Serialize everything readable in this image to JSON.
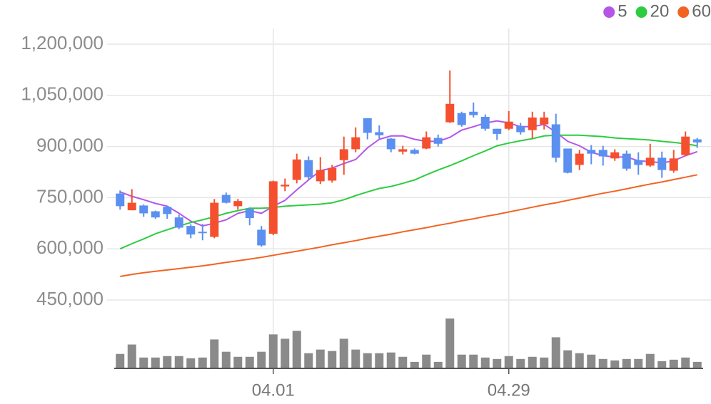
{
  "chart_data": {
    "type": "candlestick",
    "categories": [
      null,
      null,
      null,
      null,
      null,
      null,
      null,
      null,
      null,
      null,
      null,
      null,
      null,
      "04.01",
      null,
      null,
      null,
      null,
      null,
      null,
      null,
      null,
      null,
      null,
      null,
      null,
      null,
      null,
      null,
      null,
      null,
      null,
      null,
      "04.29",
      null,
      null,
      null,
      null,
      null,
      null,
      null,
      null,
      null,
      null,
      null,
      null,
      null,
      null,
      null,
      null
    ],
    "open": [
      762000,
      713000,
      727000,
      710000,
      723000,
      692000,
      667000,
      650000,
      635000,
      758000,
      725000,
      717000,
      656000,
      644000,
      783000,
      802000,
      860000,
      798000,
      800000,
      860000,
      892000,
      983000,
      942000,
      923000,
      885000,
      890000,
      894000,
      925000,
      971000,
      998000,
      1002000,
      987000,
      952000,
      952000,
      960000,
      948000,
      965000,
      965000,
      894000,
      846000,
      890000,
      890000,
      865000,
      879000,
      860000,
      844000,
      867000,
      829000,
      875000,
      921000
    ],
    "high": [
      771000,
      775000,
      730000,
      712000,
      725000,
      700000,
      672000,
      673000,
      746000,
      765000,
      746000,
      721000,
      667000,
      800000,
      806000,
      879000,
      871000,
      869000,
      846000,
      929000,
      956000,
      983000,
      962000,
      925000,
      902000,
      894000,
      944000,
      935000,
      1123000,
      1002000,
      1029000,
      994000,
      952000,
      1004000,
      969000,
      1002000,
      1002000,
      996000,
      894000,
      890000,
      904000,
      902000,
      892000,
      888000,
      883000,
      908000,
      885000,
      890000,
      944000,
      925000
    ],
    "low": [
      715000,
      713000,
      694000,
      688000,
      688000,
      658000,
      631000,
      625000,
      631000,
      733000,
      715000,
      669000,
      606000,
      640000,
      769000,
      792000,
      802000,
      790000,
      794000,
      817000,
      883000,
      921000,
      923000,
      883000,
      877000,
      877000,
      892000,
      900000,
      969000,
      958000,
      985000,
      946000,
      919000,
      948000,
      935000,
      923000,
      950000,
      854000,
      821000,
      831000,
      848000,
      844000,
      858000,
      829000,
      817000,
      840000,
      808000,
      823000,
      871000,
      896000
    ],
    "close": [
      725000,
      735000,
      704000,
      692000,
      702000,
      662000,
      642000,
      646000,
      735000,
      735000,
      740000,
      690000,
      610000,
      798000,
      788000,
      862000,
      810000,
      831000,
      837000,
      892000,
      927000,
      940000,
      933000,
      892000,
      892000,
      879000,
      927000,
      908000,
      1025000,
      963000,
      992000,
      952000,
      937000,
      973000,
      942000,
      985000,
      985000,
      867000,
      823000,
      879000,
      879000,
      871000,
      883000,
      835000,
      846000,
      867000,
      831000,
      865000,
      929000,
      912000
    ],
    "up_color": "#f4502f",
    "down_color": "#5b8ff0",
    "volume": [
      20,
      33,
      15,
      15,
      17,
      17,
      14,
      15,
      40,
      23,
      16,
      16,
      23,
      47,
      41,
      52,
      21,
      26,
      24,
      41,
      26,
      21,
      21,
      22,
      16,
      9,
      19,
      9,
      69,
      19,
      19,
      15,
      13,
      17,
      13,
      16,
      15,
      43,
      25,
      21,
      19,
      13,
      11,
      13,
      13,
      20,
      10,
      12,
      15,
      9
    ],
    "volume_lim": [
      0,
      70
    ],
    "volume_color": "#8a8a8a",
    "series": [
      {
        "name": "5",
        "color": "#b455e8",
        "values": [
          767000,
          754000,
          744000,
          733000,
          725000,
          704000,
          681000,
          667000,
          675000,
          685000,
          704000,
          712000,
          704000,
          725000,
          742000,
          773000,
          802000,
          829000,
          837000,
          850000,
          862000,
          896000,
          921000,
          931000,
          931000,
          921000,
          915000,
          915000,
          927000,
          948000,
          958000,
          969000,
          975000,
          969000,
          958000,
          958000,
          965000,
          942000,
          915000,
          902000,
          883000,
          873000,
          869000,
          869000,
          858000,
          856000,
          852000,
          858000,
          873000,
          885000
        ]
      },
      {
        "name": "20",
        "color": "#2ecc40",
        "values": [
          600000,
          615000,
          629000,
          644000,
          656000,
          667000,
          677000,
          685000,
          694000,
          704000,
          712000,
          719000,
          719000,
          721000,
          725000,
          727000,
          729000,
          731000,
          735000,
          744000,
          756000,
          767000,
          777000,
          783000,
          792000,
          802000,
          817000,
          831000,
          844000,
          858000,
          873000,
          887000,
          902000,
          910000,
          917000,
          923000,
          931000,
          933000,
          933000,
          933000,
          931000,
          929000,
          925000,
          923000,
          921000,
          919000,
          915000,
          912000,
          908000,
          902000
        ]
      },
      {
        "name": "60",
        "color": "#f26322",
        "values": [
          519000,
          525000,
          530000,
          534000,
          538000,
          542000,
          546000,
          550000,
          555000,
          560000,
          565000,
          570000,
          575000,
          581000,
          587000,
          593000,
          599000,
          605000,
          612000,
          618000,
          624000,
          631000,
          637000,
          643000,
          650000,
          656000,
          662000,
          669000,
          675000,
          682000,
          688000,
          695000,
          701000,
          708000,
          715000,
          722000,
          729000,
          735000,
          742000,
          749000,
          756000,
          763000,
          769000,
          776000,
          783000,
          790000,
          796000,
          803000,
          810000,
          817000
        ]
      }
    ],
    "ylim": [
      450000,
      1200000
    ],
    "yticks": [
      {
        "value": 1200000,
        "label": "1,200,000"
      },
      {
        "value": 1050000,
        "label": "1,050,000"
      },
      {
        "value": 900000,
        "label": "900,000"
      },
      {
        "value": 750000,
        "label": "750,000"
      },
      {
        "value": 600000,
        "label": "600,000"
      },
      {
        "value": 450000,
        "label": "450,000"
      }
    ],
    "grid": true
  }
}
